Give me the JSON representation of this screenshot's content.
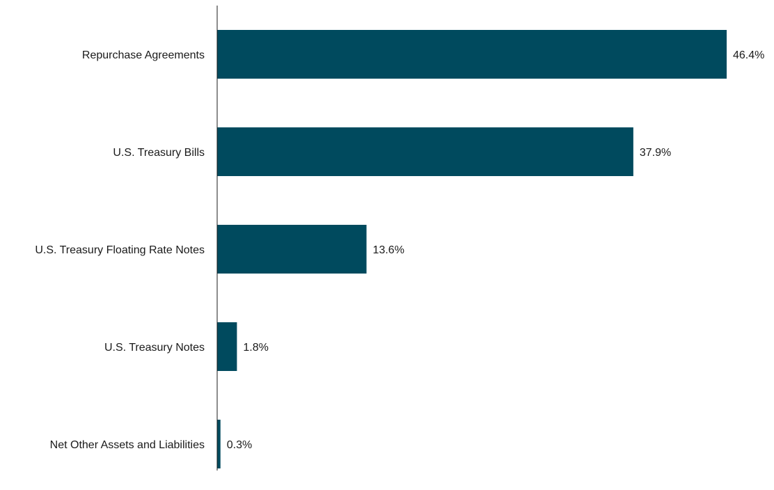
{
  "chart_data": {
    "type": "bar",
    "orientation": "horizontal",
    "categories": [
      "Repurchase Agreements",
      "U.S. Treasury Bills",
      "U.S. Treasury Floating Rate Notes",
      "U.S. Treasury Notes",
      "Net Other Assets and Liabilities"
    ],
    "values": [
      46.4,
      37.9,
      13.6,
      1.8,
      0.3
    ],
    "value_labels": [
      "46.4%",
      "37.9%",
      "13.6%",
      "1.8%",
      "0.3%"
    ],
    "bar_color": "#004a5e",
    "xlim": [
      0,
      46.4
    ],
    "grid": false,
    "legend": "none"
  }
}
